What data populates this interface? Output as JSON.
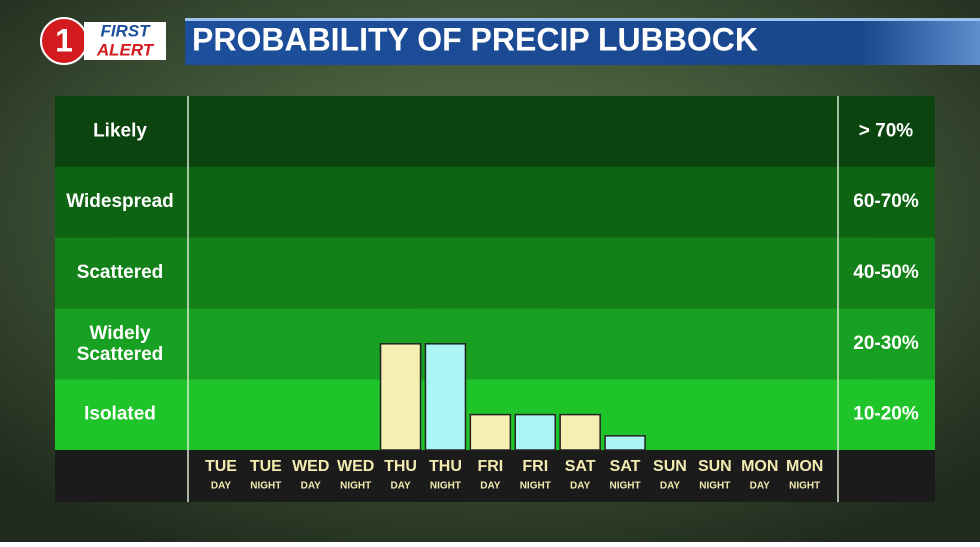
{
  "logo": {
    "number": "1",
    "line1": "FIRST",
    "line2": "ALERT"
  },
  "chart_data": {
    "type": "bar",
    "title": "PROBABILITY OF PRECIP LUBBOCK",
    "bands": [
      {
        "name": "Isolated",
        "range": "10-20%",
        "color": "#1ec42a"
      },
      {
        "name": "Widely Scattered",
        "range": "20-30%",
        "color": "#17a021"
      },
      {
        "name": "Scattered",
        "range": "40-50%",
        "color": "#138019"
      },
      {
        "name": "Widespread",
        "range": "60-70%",
        "color": "#0f6414"
      },
      {
        "name": "Likely",
        "range": "> 70%",
        "color": "#0b440e"
      }
    ],
    "categories": [
      [
        "TUE",
        "DAY"
      ],
      [
        "TUE",
        "NIGHT"
      ],
      [
        "WED",
        "DAY"
      ],
      [
        "WED",
        "NIGHT"
      ],
      [
        "THU",
        "DAY"
      ],
      [
        "THU",
        "NIGHT"
      ],
      [
        "FRI",
        "DAY"
      ],
      [
        "FRI",
        "NIGHT"
      ],
      [
        "SAT",
        "DAY"
      ],
      [
        "SAT",
        "NIGHT"
      ],
      [
        "SUN",
        "DAY"
      ],
      [
        "SUN",
        "NIGHT"
      ],
      [
        "MON",
        "DAY"
      ],
      [
        "MON",
        "NIGHT"
      ]
    ],
    "values": [
      0,
      0,
      0,
      0,
      25,
      25,
      15,
      15,
      15,
      12,
      0,
      0,
      0,
      0
    ],
    "bar_colors": [
      "#f6efb2",
      "#a9f6f4",
      "#f6efb2",
      "#a9f6f4",
      "#f6efb2",
      "#a9f6f4",
      "#f6efb2",
      "#a9f6f4",
      "#f6efb2",
      "#a9f6f4",
      "#f6efb2",
      "#a9f6f4",
      "#f6efb2",
      "#a9f6f4"
    ]
  }
}
